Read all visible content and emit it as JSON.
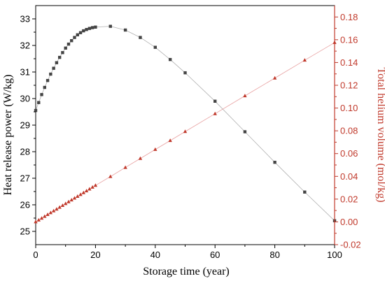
{
  "chart_data": {
    "type": "scatter",
    "xlabel": "Storage time (year)",
    "xlim": [
      0,
      100
    ],
    "x_ticks": [
      0,
      20,
      40,
      60,
      80,
      100
    ],
    "grid": false,
    "legend": "none",
    "left_axis": {
      "label": "Heat release power (W/kg)",
      "ylim": [
        24.5,
        33.5
      ],
      "ticks": [
        25,
        26,
        27,
        28,
        29,
        30,
        31,
        32,
        33
      ],
      "color": "#000000"
    },
    "right_axis": {
      "label": "Total helium volume (mol/kg)",
      "ylim": [
        -0.02,
        0.19
      ],
      "ticks": [
        "-0.02",
        "0.00",
        "0.02",
        "0.04",
        "0.06",
        "0.08",
        "0.10",
        "0.12",
        "0.14",
        "0.16",
        "0.18"
      ],
      "color": "#c0392b"
    },
    "series": [
      {
        "axis": "left",
        "marker": "square",
        "color": "#444444",
        "line_color": "#b0b0b0",
        "points": [
          [
            0,
            29.55
          ],
          [
            1,
            29.85
          ],
          [
            2,
            30.15
          ],
          [
            3,
            30.42
          ],
          [
            4,
            30.68
          ],
          [
            5,
            30.92
          ],
          [
            6,
            31.14
          ],
          [
            7,
            31.35
          ],
          [
            8,
            31.55
          ],
          [
            9,
            31.73
          ],
          [
            10,
            31.9
          ],
          [
            11,
            32.05
          ],
          [
            12,
            32.18
          ],
          [
            13,
            32.3
          ],
          [
            14,
            32.4
          ],
          [
            15,
            32.48
          ],
          [
            16,
            32.55
          ],
          [
            17,
            32.6
          ],
          [
            18,
            32.64
          ],
          [
            19,
            32.67
          ],
          [
            20,
            32.69
          ],
          [
            25,
            32.72
          ],
          [
            30,
            32.58
          ],
          [
            35,
            32.3
          ],
          [
            40,
            31.93
          ],
          [
            45,
            31.47
          ],
          [
            50,
            30.97
          ],
          [
            60,
            29.9
          ],
          [
            70,
            28.75
          ],
          [
            80,
            27.6
          ],
          [
            90,
            26.48
          ],
          [
            100,
            25.4
          ]
        ]
      },
      {
        "axis": "right",
        "marker": "triangle",
        "color": "#c0392b",
        "line_color": "#e8a0a0",
        "points": [
          [
            0,
            0.0
          ],
          [
            1,
            0.0016
          ],
          [
            2,
            0.0032
          ],
          [
            3,
            0.0048
          ],
          [
            4,
            0.0064
          ],
          [
            5,
            0.008
          ],
          [
            6,
            0.0096
          ],
          [
            7,
            0.0112
          ],
          [
            8,
            0.0128
          ],
          [
            9,
            0.0144
          ],
          [
            10,
            0.016
          ],
          [
            11,
            0.0176
          ],
          [
            12,
            0.0192
          ],
          [
            13,
            0.0208
          ],
          [
            14,
            0.0224
          ],
          [
            15,
            0.024
          ],
          [
            16,
            0.0256
          ],
          [
            17,
            0.0272
          ],
          [
            18,
            0.0288
          ],
          [
            19,
            0.0304
          ],
          [
            20,
            0.032
          ],
          [
            25,
            0.0398
          ],
          [
            30,
            0.0478
          ],
          [
            35,
            0.0557
          ],
          [
            40,
            0.0636
          ],
          [
            45,
            0.0714
          ],
          [
            50,
            0.0793
          ],
          [
            60,
            0.095
          ],
          [
            70,
            0.1107
          ],
          [
            80,
            0.1263
          ],
          [
            90,
            0.142
          ],
          [
            100,
            0.1575
          ]
        ]
      }
    ]
  }
}
